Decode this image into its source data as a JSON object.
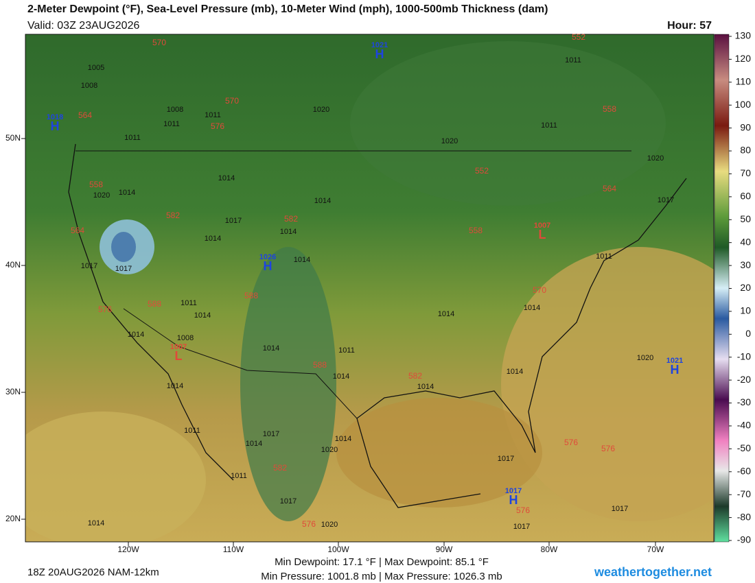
{
  "header": {
    "title": "2-Meter Dewpoint (°F), Sea-Level Pressure (mb), 10-Meter Wind (mph), 1000-500mb Thickness (dam)",
    "valid": "Valid: 03Z 23AUG2026",
    "hour": "Hour: 57"
  },
  "colorbar": {
    "ticks": [
      130,
      120,
      110,
      100,
      90,
      80,
      70,
      60,
      50,
      40,
      30,
      20,
      10,
      0,
      -10,
      -20,
      -30,
      -40,
      -50,
      -60,
      -70,
      -80,
      -90
    ]
  },
  "map": {
    "lat_labels": [
      "50N",
      "40N",
      "30N",
      "20N"
    ],
    "lon_labels": [
      "120W",
      "110W",
      "100W",
      "90W",
      "80W",
      "70W"
    ],
    "pressure_labels": [
      "1005",
      "1008",
      "1008",
      "1011",
      "1011",
      "1011",
      "1020",
      "1011",
      "1011",
      "1020",
      "1020",
      "1017",
      "1014",
      "1014",
      "1020",
      "1014",
      "1017",
      "1014",
      "1014",
      "1014",
      "1017",
      "1017",
      "1011",
      "1014",
      "1014",
      "1008",
      "1014",
      "1011",
      "1014",
      "1014",
      "1014",
      "1014",
      "1014",
      "1014",
      "1011",
      "1017",
      "1014",
      "1014",
      "1020",
      "1011",
      "1017",
      "1017",
      "1020",
      "1017",
      "1017",
      "1020",
      "1014",
      "1011"
    ],
    "thickness_labels": [
      "570",
      "570",
      "576",
      "564",
      "558",
      "564",
      "582",
      "582",
      "588",
      "588",
      "576",
      "588",
      "582",
      "552",
      "558",
      "552",
      "564",
      "558",
      "570",
      "576",
      "576",
      "576",
      "582",
      "576"
    ],
    "centers": [
      {
        "symbol": "H",
        "value": "1021"
      },
      {
        "symbol": "H",
        "value": "1018"
      },
      {
        "symbol": "H",
        "value": "1026"
      },
      {
        "symbol": "L",
        "value": "1007"
      },
      {
        "symbol": "L",
        "value": "1007"
      },
      {
        "symbol": "H",
        "value": "1017"
      },
      {
        "symbol": "H",
        "value": "1021"
      }
    ]
  },
  "footer": {
    "run": "18Z 20AUG2026 NAM-12km",
    "dewpoint": "Min Dewpoint:  17.1 °F | Max Dewpoint:  85.1 °F",
    "pressure": "Min Pressure: 1001.8 mb | Max Pressure: 1026.3 mb",
    "site": "weathertogether.net"
  }
}
